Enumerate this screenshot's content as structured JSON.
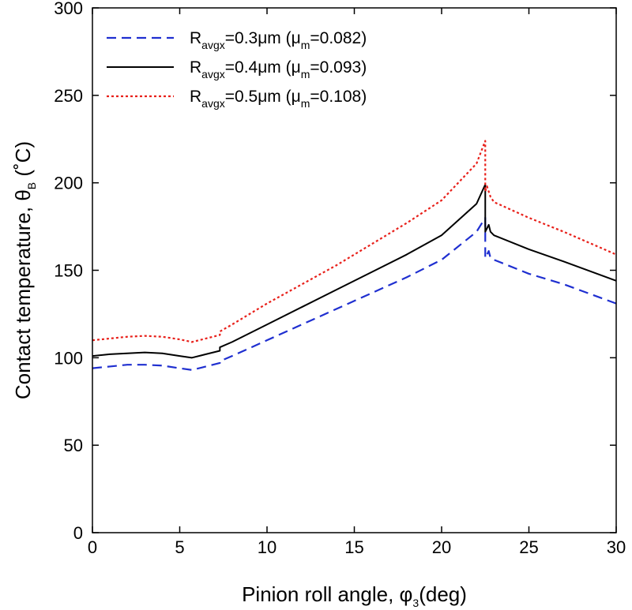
{
  "chart_data": {
    "type": "line",
    "xlabel": {
      "main": "Pinion roll angle, ",
      "symbol": "φ",
      "sub": "3",
      "unit": "(deg)"
    },
    "ylabel": {
      "main": "Contact temperature, ",
      "symbol": "θ",
      "sub": "B",
      "unit": " (˚C)"
    },
    "xlim": [
      0,
      30
    ],
    "ylim": [
      0,
      300
    ],
    "xticks": [
      0,
      5,
      10,
      15,
      20,
      25,
      30
    ],
    "yticks": [
      0,
      50,
      100,
      150,
      200,
      250,
      300
    ],
    "grid": false,
    "legend_position": "top-left",
    "series": [
      {
        "legend": {
          "pre": "R",
          "sub1": "avgx",
          "mid": "=0.3μm (μ",
          "sub2": "m",
          "post": "=0.082)"
        },
        "color": "#1f2fd0",
        "dash": "dashed",
        "x": [
          0,
          1,
          2,
          3,
          4,
          5,
          5.7,
          6.5,
          7.3,
          7.3,
          8,
          10,
          12,
          14,
          16,
          18,
          20,
          22,
          22.5,
          22.5,
          22.7,
          22.8,
          23,
          25,
          27,
          30
        ],
        "y": [
          94,
          95,
          96,
          96,
          95.5,
          94,
          93,
          95,
          97,
          98,
          101,
          110,
          119,
          128,
          137,
          146,
          156,
          172,
          180,
          157,
          161,
          157,
          156,
          148,
          142,
          131
        ]
      },
      {
        "legend": {
          "pre": "R",
          "sub1": "avgx",
          "mid": "=0.4μm (μ",
          "sub2": "m",
          "post": "=0.093)"
        },
        "color": "#000000",
        "dash": "solid",
        "x": [
          0,
          1,
          2,
          3,
          4,
          5,
          5.7,
          6.5,
          7.3,
          7.3,
          8,
          10,
          12,
          14,
          16,
          18,
          20,
          22,
          22.5,
          22.5,
          22.7,
          22.8,
          23,
          25,
          27,
          30
        ],
        "y": [
          101,
          102,
          102.5,
          103,
          102.5,
          101,
          100,
          102,
          104,
          106,
          109,
          119,
          129,
          139,
          149,
          159,
          170,
          188,
          199,
          172,
          176,
          172,
          170,
          162,
          155,
          144
        ]
      },
      {
        "legend": {
          "pre": "R",
          "sub1": "avgx",
          "mid": "=0.5μm (μ",
          "sub2": "m",
          "post": "=0.108)"
        },
        "color": "#e8201a",
        "dash": "dotted",
        "x": [
          0,
          1,
          2,
          3,
          4,
          5,
          5.7,
          6.5,
          7.3,
          7.3,
          8,
          10,
          12,
          14,
          16,
          18,
          20,
          22,
          22.5,
          22.5,
          22.6,
          22.8,
          23,
          25,
          27,
          30
        ],
        "y": [
          110,
          111,
          112,
          112.5,
          112,
          110.5,
          109,
          111,
          113,
          115,
          119,
          131,
          142,
          153,
          165,
          177,
          190,
          211,
          224,
          195,
          198,
          192,
          189,
          180,
          172,
          159
        ]
      }
    ]
  }
}
